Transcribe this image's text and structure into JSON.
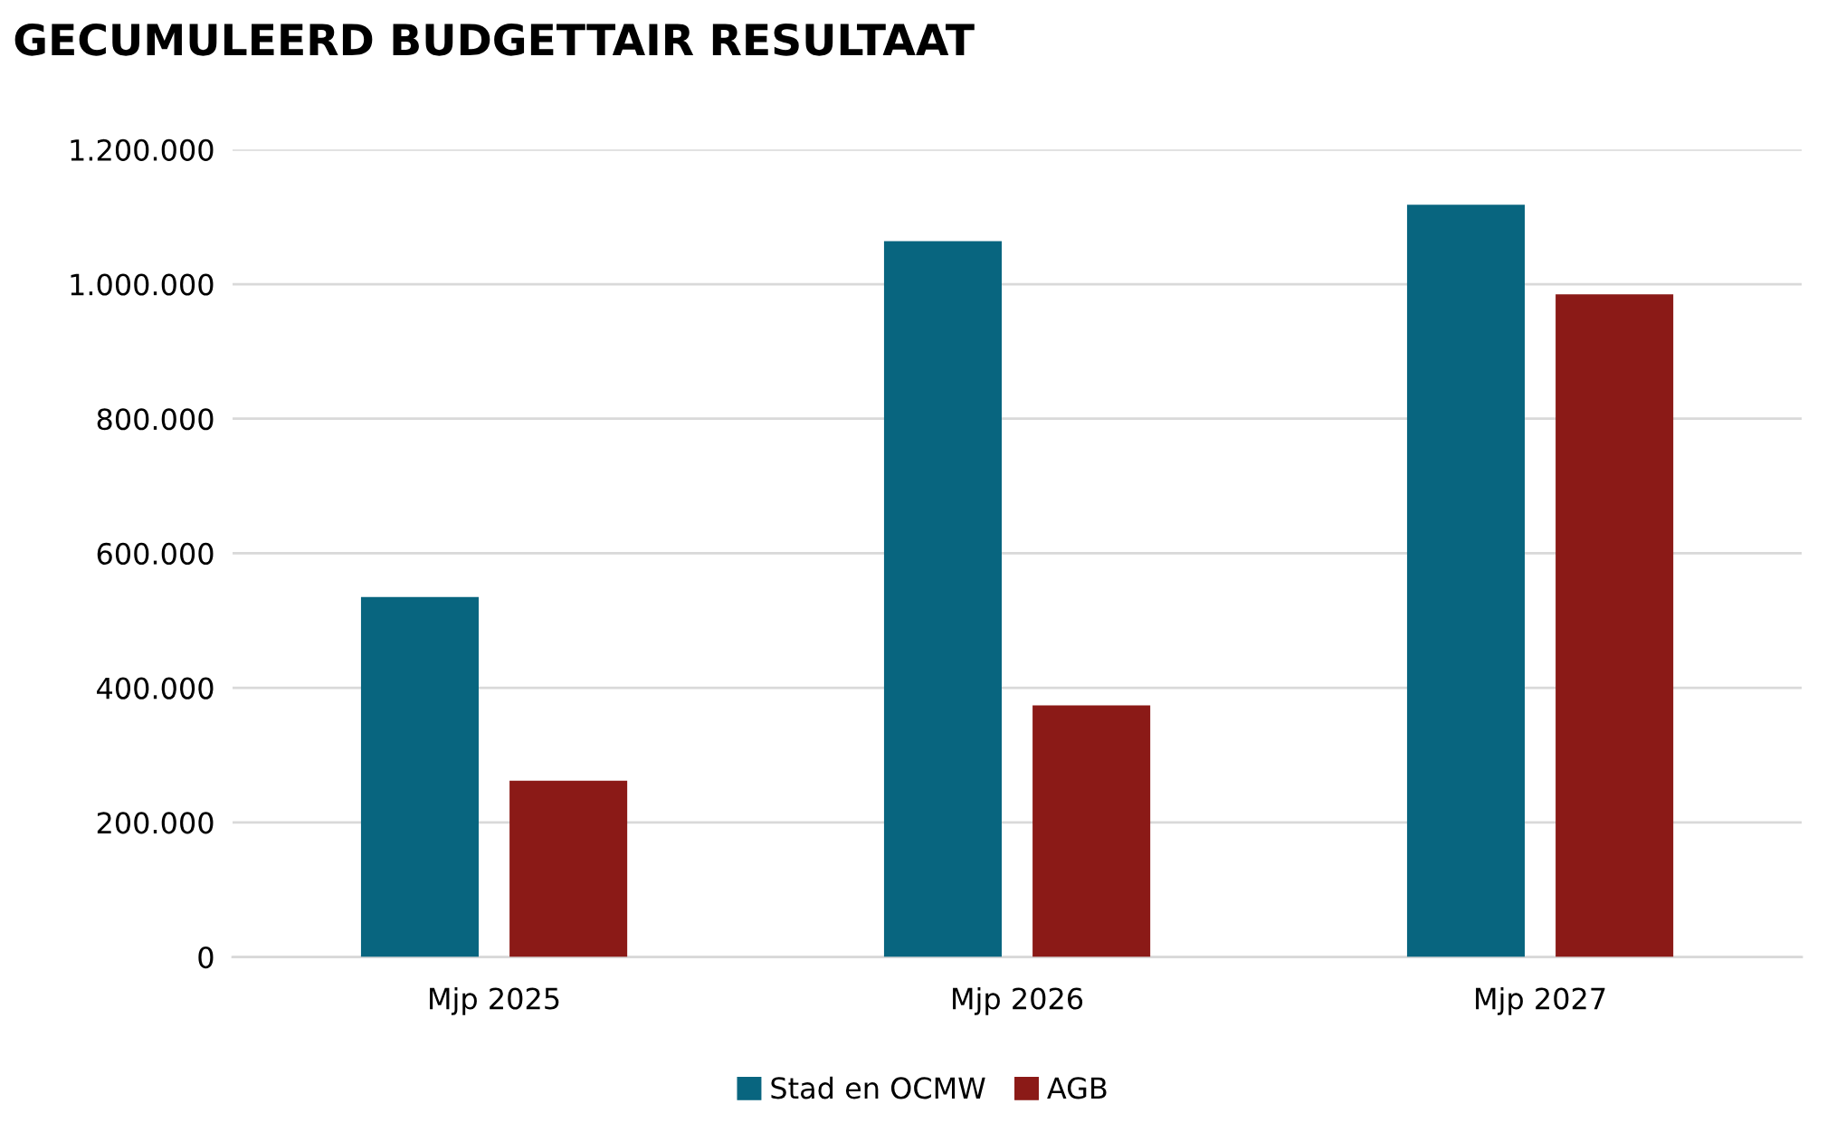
{
  "chart_data": {
    "type": "bar",
    "title": "GECUMULEERD BUDGETTAIR RESULTAAT",
    "categories": [
      "Mjp 2025",
      "Mjp 2026",
      "Mjp 2027"
    ],
    "series": [
      {
        "name": "Stad en OCMW",
        "color": "#08657f",
        "values": [
          535000,
          1064000,
          1118000
        ]
      },
      {
        "name": "AGB",
        "color": "#8b1a17",
        "values": [
          262000,
          374000,
          985000
        ]
      }
    ],
    "ylim": [
      0,
      1200000
    ],
    "yticks": [
      0,
      {
        "value": 200000,
        "label": "200.000"
      },
      {
        "value": 400000,
        "label": "400.000"
      },
      {
        "value": 600000,
        "label": "600.000"
      },
      {
        "value": 800000,
        "label": "800.000"
      },
      {
        "value": 1000000,
        "label": "1.000.000"
      },
      {
        "value": 1200000,
        "label": "1.200.000"
      }
    ],
    "grid": "y",
    "legend": "bottom"
  }
}
